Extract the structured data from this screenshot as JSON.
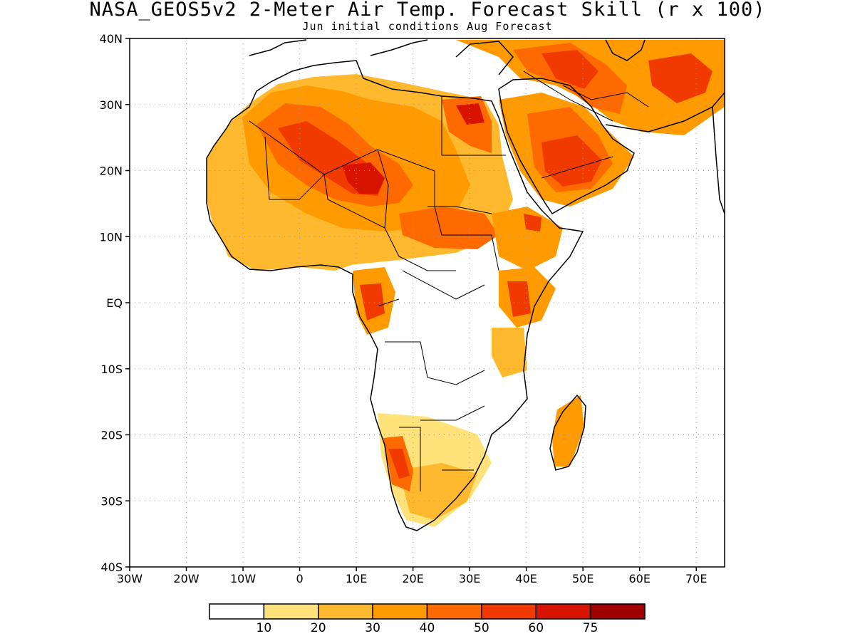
{
  "header": {
    "title": "NASA_GEOS5v2 2-Meter Air Temp. Forecast Skill (r x 100)",
    "subtitle": "Jun initial conditions  Aug Forecast"
  },
  "map": {
    "lat_labels": [
      "40N",
      "30N",
      "20N",
      "10N",
      "EQ",
      "10S",
      "20S",
      "30S",
      "40S"
    ],
    "lat_values": [
      40,
      30,
      20,
      10,
      0,
      -10,
      -20,
      -30,
      -40
    ],
    "lon_labels": [
      "30W",
      "20W",
      "10W",
      "0",
      "10E",
      "20E",
      "30E",
      "40E",
      "50E",
      "60E",
      "70E"
    ],
    "lon_values": [
      -30,
      -20,
      -10,
      0,
      10,
      20,
      30,
      40,
      50,
      60,
      70
    ],
    "lon_range": [
      -30,
      75
    ],
    "lat_range": [
      -40,
      40
    ],
    "coastline_color": "#000000",
    "gridline_style": "dotted"
  },
  "colorbar": {
    "labels": [
      "10",
      "20",
      "30",
      "40",
      "50",
      "60",
      "75"
    ],
    "colors": [
      "#ffffff",
      "#ffe27a",
      "#ffb92e",
      "#ff9a00",
      "#ff6a00",
      "#f03a00",
      "#d81400",
      "#a00000"
    ]
  }
}
